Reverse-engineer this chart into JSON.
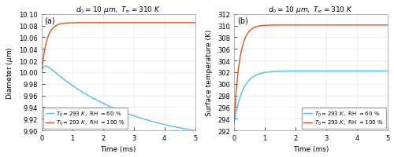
{
  "title": "$d_0 = 10\\ \\mu m,\\ T_\\infty = 310\\ K$",
  "xlabel": "Time (ms)",
  "ylabel_a": "Diameter ($\\mu$m)",
  "ylabel_b": "Surface temperature (K)",
  "panel_a_label": "(a)",
  "panel_b_label": "(b)",
  "legend_rh60": "$T_0 = 293\\ K$,  RH $= 60\\ \\%$",
  "legend_rh100": "$T_0 = 293\\ K$,  RH $= 100\\ \\%$",
  "color_rh60": "#4DBEEE",
  "color_rh100": "#D95319",
  "xlim": [
    0,
    5
  ],
  "ylim_a": [
    9.9,
    10.1
  ],
  "ylim_b": [
    292,
    312
  ],
  "yticks_a": [
    9.9,
    9.92,
    9.94,
    9.96,
    9.98,
    10.0,
    10.02,
    10.04,
    10.06,
    10.08,
    10.1
  ],
  "yticks_b": [
    292,
    294,
    296,
    298,
    300,
    302,
    304,
    306,
    308,
    310,
    312
  ],
  "xticks": [
    0,
    1,
    2,
    3,
    4,
    5
  ],
  "grid_color": "#E8E8E8",
  "bg_color": "#FFFFFF",
  "linewidth": 1.0
}
